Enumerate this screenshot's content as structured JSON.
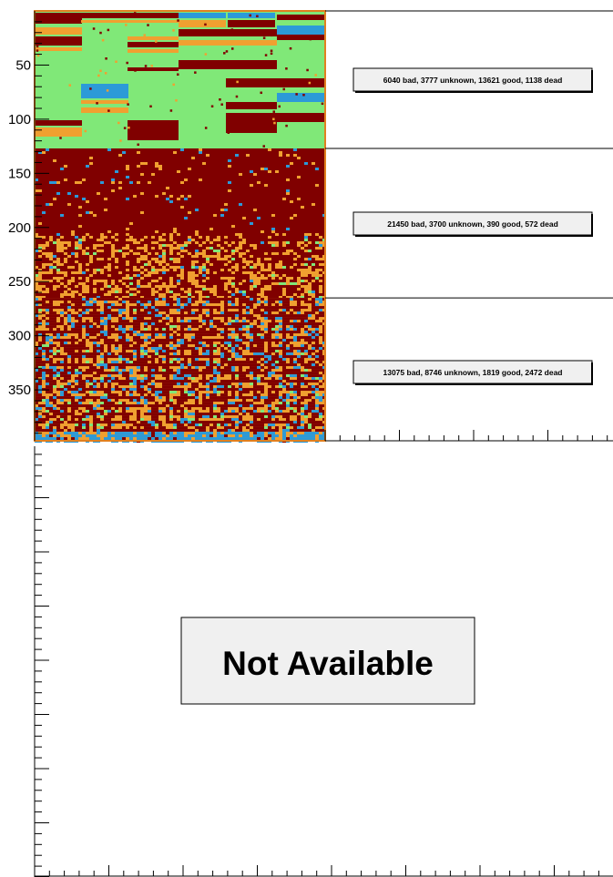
{
  "colors": {
    "bad": "#800000",
    "unknown": "#f0a030",
    "good": "#80e878",
    "dead": "#2c9ad8",
    "map_border": "#e08020",
    "background": "#ffffff",
    "na_box": "#f0f0f0"
  },
  "chart_data": [
    {
      "type": "heatmap",
      "title": "",
      "xlabel": "",
      "ylabel": "",
      "ylim": [
        0,
        397
      ],
      "yticks": [
        50,
        100,
        150,
        200,
        250,
        300,
        350
      ],
      "categories": [
        "bad",
        "unknown",
        "good",
        "dead"
      ],
      "sections": [
        {
          "y_range": [
            0,
            127
          ],
          "bad": 6040,
          "unknown": 3777,
          "good": 13621,
          "dead": 1138,
          "summary": "6040 bad, 3777 unknown, 13621 good, 1138 dead"
        },
        {
          "y_range": [
            127,
            265
          ],
          "bad": 21450,
          "unknown": 3700,
          "good": 390,
          "dead": 572,
          "summary": "21450 bad, 3700 unknown, 390 good, 572 dead"
        },
        {
          "y_range": [
            265,
            397
          ],
          "bad": 13075,
          "unknown": 8746,
          "good": 1819,
          "dead": 2472,
          "summary": "13075 bad, 8746 unknown, 1819 good, 2472 dead"
        }
      ]
    }
  ],
  "lower_panel": {
    "message": "Not Available"
  }
}
